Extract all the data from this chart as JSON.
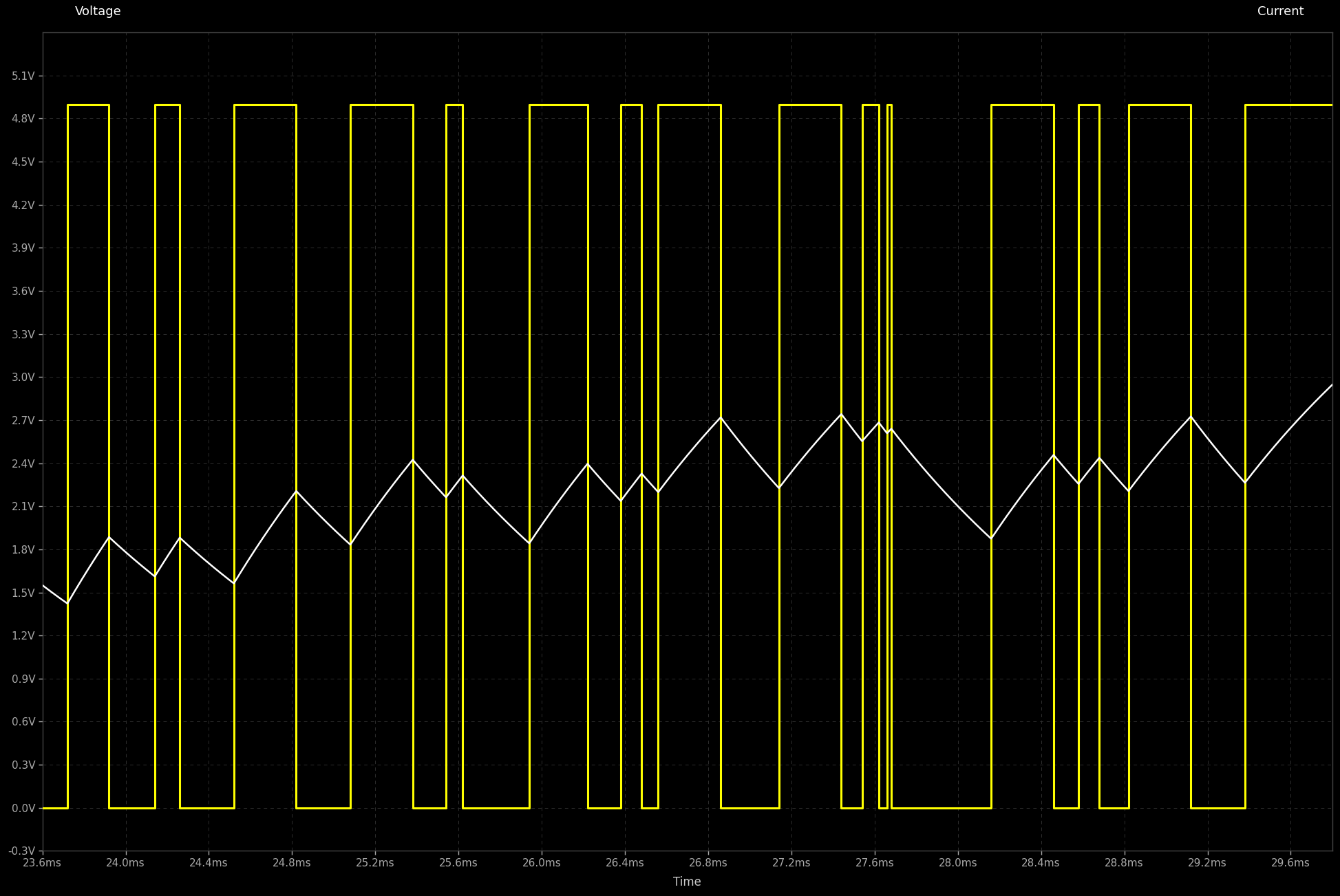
{
  "background_color": "#000000",
  "plot_bg_color": "#000000",
  "title_voltage": "Voltage",
  "title_current": "Current",
  "xlabel": "Time",
  "yticks": [
    5.1,
    4.8,
    4.5,
    4.2,
    3.9,
    3.6,
    3.3,
    3.0,
    2.7,
    2.4,
    2.1,
    1.8,
    1.5,
    1.2,
    0.9,
    0.6,
    0.3,
    0.0,
    -0.3
  ],
  "ytick_labels": [
    "5.1V",
    "4.8V",
    "4.5V",
    "4.2V",
    "3.9V",
    "3.6V",
    "3.3V",
    "3.0V",
    "2.7V",
    "2.4V",
    "2.1V",
    "1.8V",
    "1.5V",
    "1.2V",
    "0.9V",
    "0.6V",
    "0.3V",
    "0.0V",
    "-0.3V"
  ],
  "xmin": 23.6,
  "xmax": 29.8,
  "ymin": -0.3,
  "ymax": 5.4,
  "xtick_positions": [
    23.6,
    24.0,
    24.4,
    24.8,
    25.2,
    25.6,
    26.0,
    26.4,
    26.8,
    27.2,
    27.6,
    28.0,
    28.4,
    28.8,
    29.2,
    29.6
  ],
  "xtick_labels": [
    "23.6ms",
    "24.0ms",
    "24.4ms",
    "24.8ms",
    "25.2ms",
    "25.6ms",
    "26.0ms",
    "26.4ms",
    "26.8ms",
    "27.2ms",
    "27.6ms",
    "28.0ms",
    "28.4ms",
    "28.8ms",
    "29.2ms",
    "29.6ms"
  ],
  "pwm_color": "#ffff00",
  "smooth_color": "#ffffff",
  "pwm_high": 4.9,
  "pwm_low": 0.0,
  "pwm_linewidth": 2.2,
  "smooth_linewidth": 1.8,
  "axis_color": "#555555",
  "tick_color": "#aaaaaa",
  "label_color": "#cccccc",
  "title_color": "#ffffff",
  "RC_ms": 1.4,
  "v_init": 1.55,
  "pwm_transitions": [
    [
      23.6,
      0.0
    ],
    [
      23.72,
      4.9
    ],
    [
      23.92,
      0.0
    ],
    [
      24.14,
      4.9
    ],
    [
      24.26,
      0.0
    ],
    [
      24.52,
      4.9
    ],
    [
      24.82,
      0.0
    ],
    [
      25.08,
      4.9
    ],
    [
      25.38,
      0.0
    ],
    [
      25.54,
      4.9
    ],
    [
      25.62,
      0.0
    ],
    [
      25.94,
      4.9
    ],
    [
      26.22,
      0.0
    ],
    [
      26.38,
      4.9
    ],
    [
      26.48,
      0.0
    ],
    [
      26.56,
      4.9
    ],
    [
      26.86,
      0.0
    ],
    [
      27.14,
      4.9
    ],
    [
      27.44,
      0.0
    ],
    [
      27.54,
      4.9
    ],
    [
      27.62,
      0.0
    ],
    [
      27.66,
      4.9
    ],
    [
      27.68,
      0.0
    ],
    [
      28.16,
      4.9
    ],
    [
      28.46,
      0.0
    ],
    [
      28.58,
      4.9
    ],
    [
      28.68,
      0.0
    ],
    [
      28.82,
      4.9
    ],
    [
      29.12,
      0.0
    ],
    [
      29.38,
      4.9
    ],
    [
      29.8,
      4.9
    ]
  ]
}
